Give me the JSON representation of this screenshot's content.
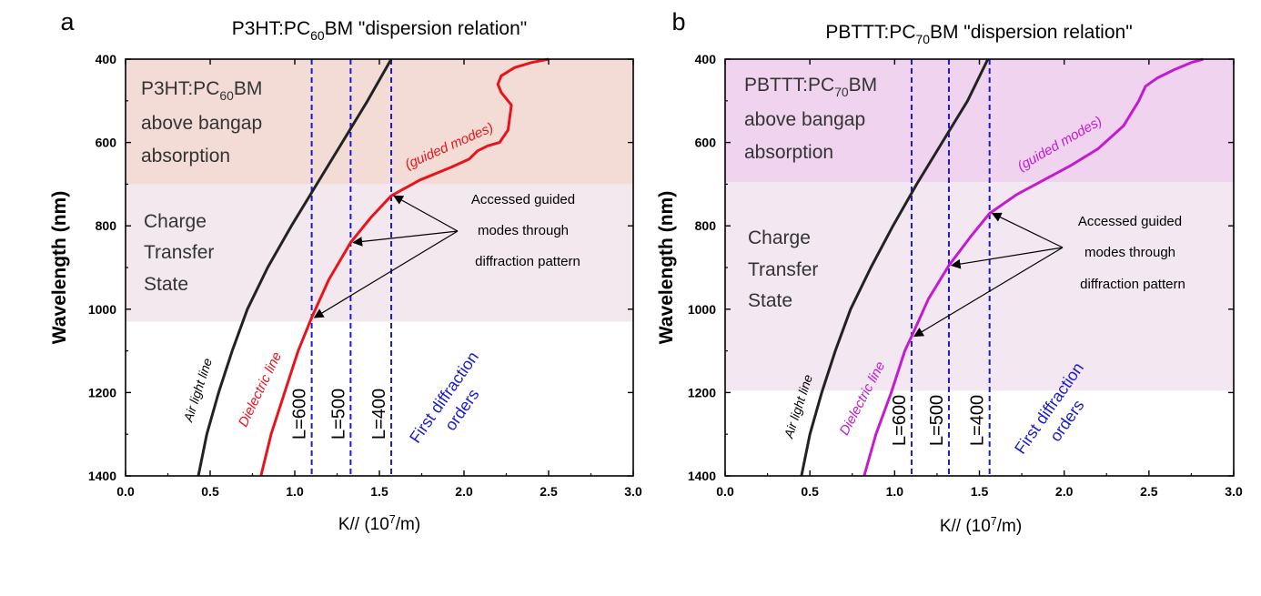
{
  "chart_data": [
    {
      "panel_letter": "a",
      "type": "line",
      "title_main": "P3HT:PC",
      "title_sub": "60",
      "title_tail": "BM \"dispersion relation\"",
      "xlabel_main": "K// (10",
      "xlabel_sup": "7",
      "xlabel_tail": "/m)",
      "ylabel": "Wavelength (nm)",
      "xlim": [
        0,
        3
      ],
      "ylim": [
        400,
        1400
      ],
      "y_inverted": true,
      "x_ticks": [
        "0.0",
        "0.5",
        "1.0",
        "1.5",
        "2.0",
        "2.5",
        "3.0"
      ],
      "y_ticks": [
        "400",
        "600",
        "800",
        "1000",
        "1200",
        "1400"
      ],
      "regions": [
        {
          "y_from": 400,
          "y_to": 700,
          "color": "#F3DCD6",
          "text": [
            "P3HT:PC|60|BM",
            "above bangap",
            "absorption"
          ]
        },
        {
          "y_from": 700,
          "y_to": 1030,
          "color": "#F2E8EE",
          "text": [
            "Charge",
            "Transfer",
            "State"
          ]
        }
      ],
      "series": [
        {
          "name": "Air light line",
          "color": "#222222",
          "x": [
            0.43,
            0.48,
            0.55,
            0.63,
            0.72,
            0.84,
            0.98,
            1.13,
            1.28,
            1.43,
            1.57
          ],
          "y": [
            1400,
            1300,
            1200,
            1100,
            1000,
            900,
            800,
            700,
            600,
            500,
            400
          ]
        },
        {
          "name": "Dielectric line",
          "color": "#E8141B",
          "x": [
            0.8,
            0.86,
            0.94,
            1.02,
            1.1,
            1.2,
            1.33,
            1.45,
            1.57,
            1.74,
            1.92,
            2.03,
            2.08,
            2.14,
            2.21,
            2.26,
            2.28,
            2.22,
            2.2,
            2.22,
            2.3,
            2.4,
            2.5
          ],
          "y": [
            1400,
            1300,
            1200,
            1100,
            1020,
            930,
            840,
            780,
            728,
            690,
            660,
            640,
            620,
            608,
            600,
            570,
            510,
            480,
            460,
            440,
            420,
            408,
            400
          ]
        }
      ],
      "diffraction_orders": [
        {
          "x": 1.1,
          "label": "L=600"
        },
        {
          "x": 1.33,
          "label": "L=500"
        },
        {
          "x": 1.57,
          "label": "L=400"
        }
      ],
      "accessed_points": [
        {
          "x": 1.1,
          "y": 1020
        },
        {
          "x": 1.33,
          "y": 840
        },
        {
          "x": 1.57,
          "y": 728
        }
      ],
      "annotations": {
        "guided_modes": "(guided modes)",
        "accessed_lines": [
          "Accessed guided",
          "modes through",
          "diffraction pattern"
        ],
        "air_light_line": "Air light line",
        "dielectric_line": "Dielectric line",
        "first_diffraction": [
          "First diffraction",
          "orders"
        ]
      }
    },
    {
      "panel_letter": "b",
      "type": "line",
      "title_main": "PBTTT:PC",
      "title_sub": "70",
      "title_tail": "BM \"dispersion relation\"",
      "xlabel_main": "K// (10",
      "xlabel_sup": "7",
      "xlabel_tail": "/m)",
      "ylabel": "Wavelength (nm)",
      "xlim": [
        0,
        3
      ],
      "ylim": [
        400,
        1400
      ],
      "y_inverted": true,
      "x_ticks": [
        "0.0",
        "0.5",
        "1.0",
        "1.5",
        "2.0",
        "2.5",
        "3.0"
      ],
      "y_ticks": [
        "400",
        "600",
        "800",
        "1000",
        "1200",
        "1400"
      ],
      "regions": [
        {
          "y_from": 400,
          "y_to": 695,
          "color": "#F0D4EF",
          "text": [
            "PBTTT:PC|70|BM",
            "above bangap",
            "absorption"
          ]
        },
        {
          "y_from": 695,
          "y_to": 1195,
          "color": "#F3E8F1",
          "text": [
            "Charge",
            "Transfer",
            "State"
          ]
        }
      ],
      "series": [
        {
          "name": "Air light line",
          "color": "#222222",
          "x": [
            0.45,
            0.5,
            0.57,
            0.65,
            0.74,
            0.86,
            0.99,
            1.13,
            1.28,
            1.43,
            1.55
          ],
          "y": [
            1400,
            1300,
            1200,
            1100,
            1000,
            900,
            800,
            700,
            600,
            500,
            400
          ]
        },
        {
          "name": "Dielectric line",
          "color": "#C21BD0",
          "x": [
            0.82,
            0.89,
            0.98,
            1.06,
            1.1,
            1.2,
            1.32,
            1.45,
            1.56,
            1.72,
            1.88,
            2.04,
            2.2,
            2.35,
            2.44,
            2.48,
            2.55,
            2.65,
            2.75,
            2.82
          ],
          "y": [
            1400,
            1300,
            1200,
            1100,
            1065,
            975,
            895,
            825,
            770,
            725,
            690,
            655,
            615,
            560,
            500,
            465,
            445,
            425,
            408,
            400
          ]
        }
      ],
      "diffraction_orders": [
        {
          "x": 1.1,
          "label": "L=600"
        },
        {
          "x": 1.32,
          "label": "L=500"
        },
        {
          "x": 1.56,
          "label": "L=400"
        }
      ],
      "accessed_points": [
        {
          "x": 1.1,
          "y": 1065
        },
        {
          "x": 1.32,
          "y": 895
        },
        {
          "x": 1.56,
          "y": 770
        }
      ],
      "annotations": {
        "guided_modes": "(guided modes)",
        "accessed_lines": [
          "Accessed guided",
          "modes through",
          "diffraction pattern"
        ],
        "air_light_line": "Air light line",
        "dielectric_line": "Dielectric line",
        "first_diffraction": [
          "First diffraction",
          "orders"
        ]
      }
    }
  ]
}
